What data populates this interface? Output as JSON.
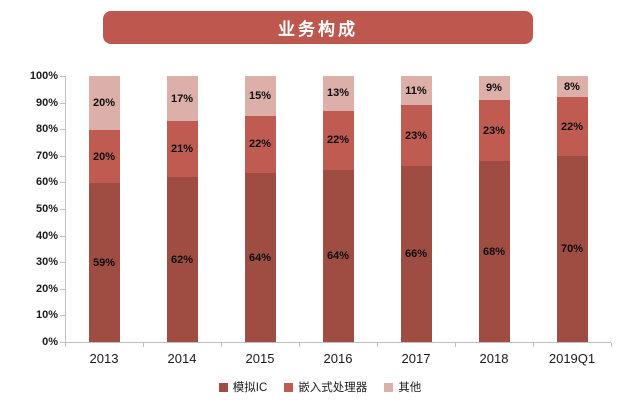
{
  "title": "业务构成",
  "colors": {
    "banner": "#be574e",
    "axis": "#bfbfbf",
    "label": "#1a1a1a"
  },
  "chart_data": {
    "type": "bar",
    "subtype": "stacked-percent",
    "title": "业务构成",
    "categories": [
      "2013",
      "2014",
      "2015",
      "2016",
      "2017",
      "2018",
      "2019Q1"
    ],
    "series": [
      {
        "name": "模拟IC",
        "color": "#9f4c43",
        "values": [
          59,
          62,
          64,
          64,
          66,
          68,
          70
        ]
      },
      {
        "name": "嵌入式处理器",
        "color": "#c05b52",
        "values": [
          20,
          21,
          22,
          22,
          23,
          23,
          22
        ]
      },
      {
        "name": "其他",
        "color": "#dcafa9",
        "values": [
          20,
          17,
          15,
          13,
          11,
          9,
          8
        ]
      }
    ],
    "value_suffix": "%",
    "y_ticks": [
      "0%",
      "10%",
      "20%",
      "30%",
      "40%",
      "50%",
      "60%",
      "70%",
      "80%",
      "90%",
      "100%"
    ],
    "ylim": [
      0,
      100
    ],
    "xlabel": "",
    "ylabel": "",
    "grid": false,
    "legend_position": "bottom"
  }
}
